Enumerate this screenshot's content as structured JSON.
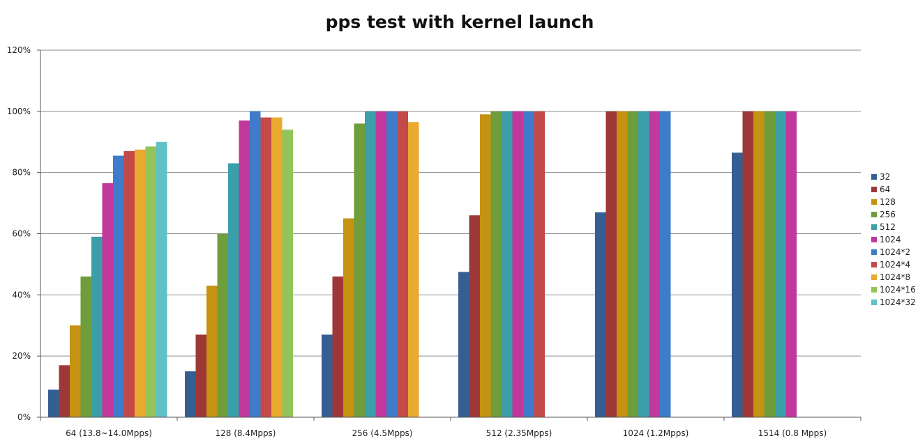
{
  "chart_data": {
    "type": "bar",
    "title": "pps test with kernel launch",
    "xlabel": "",
    "ylabel": "",
    "ylim": [
      0,
      120
    ],
    "y_ticks": [
      "0%",
      "20%",
      "40%",
      "60%",
      "80%",
      "100%",
      "120%"
    ],
    "y_tick_values": [
      0,
      20,
      40,
      60,
      80,
      100,
      120
    ],
    "grid": true,
    "legend_position": "right",
    "categories": [
      "64 (13.8~14.0Mpps)",
      "128 (8.4Mpps)",
      "256 (4.5Mpps)",
      "512 (2.35Mpps)",
      "1024 (1.2Mpps)",
      "1514 (0.8 Mpps)"
    ],
    "series": [
      {
        "name": "32",
        "color": "#355f93",
        "values": [
          9,
          15,
          27,
          47.5,
          67,
          86.5
        ]
      },
      {
        "name": "64",
        "color": "#9e3838",
        "values": [
          17,
          27,
          46,
          66,
          100,
          100
        ]
      },
      {
        "name": "128",
        "color": "#c59212",
        "values": [
          30,
          43,
          65,
          99,
          100,
          100
        ]
      },
      {
        "name": "256",
        "color": "#6f9d3c",
        "values": [
          46,
          60,
          96,
          100,
          100,
          100
        ]
      },
      {
        "name": "512",
        "color": "#3a9fa9",
        "values": [
          59,
          83,
          100,
          100,
          100,
          100
        ]
      },
      {
        "name": "1024",
        "color": "#c1389c",
        "values": [
          76.5,
          97,
          100,
          100,
          100,
          100
        ]
      },
      {
        "name": "1024*2",
        "color": "#3f7bcb",
        "values": [
          85.5,
          100,
          100,
          100,
          100,
          null
        ]
      },
      {
        "name": "1024*4",
        "color": "#c34a48",
        "values": [
          87,
          98,
          100,
          100,
          null,
          null
        ]
      },
      {
        "name": "1024*8",
        "color": "#eaaa2f",
        "values": [
          87.5,
          98,
          96.5,
          null,
          null,
          null
        ]
      },
      {
        "name": "1024*16",
        "color": "#92c459",
        "values": [
          88.5,
          94,
          null,
          null,
          null,
          null
        ]
      },
      {
        "name": "1024*32",
        "color": "#62c0c7",
        "values": [
          90,
          null,
          null,
          null,
          null,
          null
        ]
      }
    ]
  }
}
